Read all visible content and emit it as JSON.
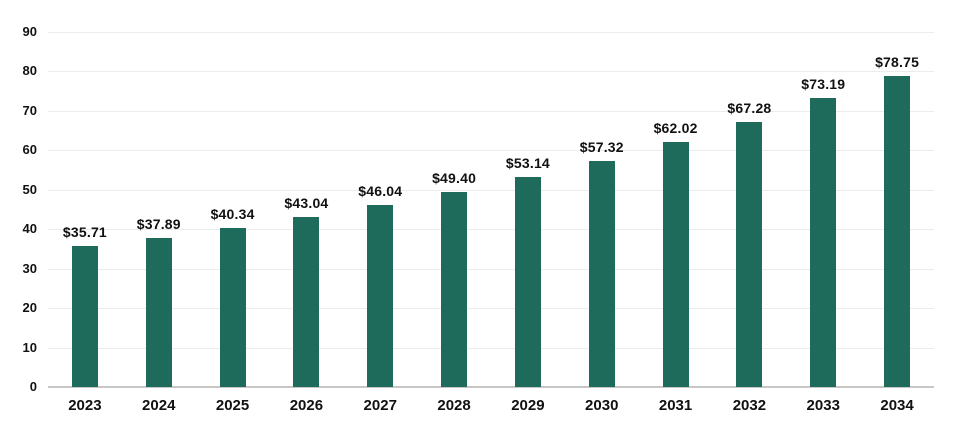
{
  "chart_data": {
    "type": "bar",
    "title": "",
    "xlabel": "",
    "ylabel": "",
    "categories": [
      "2023",
      "2024",
      "2025",
      "2026",
      "2027",
      "2028",
      "2029",
      "2030",
      "2031",
      "2032",
      "2033",
      "2034"
    ],
    "values": [
      35.71,
      37.89,
      40.34,
      43.04,
      46.04,
      49.4,
      53.14,
      57.32,
      62.02,
      67.28,
      73.19,
      78.75
    ],
    "value_labels": [
      "$35.71",
      "$37.89",
      "$40.34",
      "$43.04",
      "$46.04",
      "$49.40",
      "$53.14",
      "$57.32",
      "$62.02",
      "$67.28",
      "$73.19",
      "$78.75"
    ],
    "ylim": [
      0,
      90
    ],
    "ytick_step": 10,
    "ytick_labels": [
      "0",
      "10",
      "20",
      "30",
      "40",
      "50",
      "60",
      "70",
      "80",
      "90"
    ],
    "grid": true,
    "legend": "none",
    "colors": {
      "bar": "#1e6b5c",
      "gridline": "#ececec",
      "axis_line": "#c7c7c7",
      "text": "#111111",
      "background": "#ffffff"
    }
  }
}
